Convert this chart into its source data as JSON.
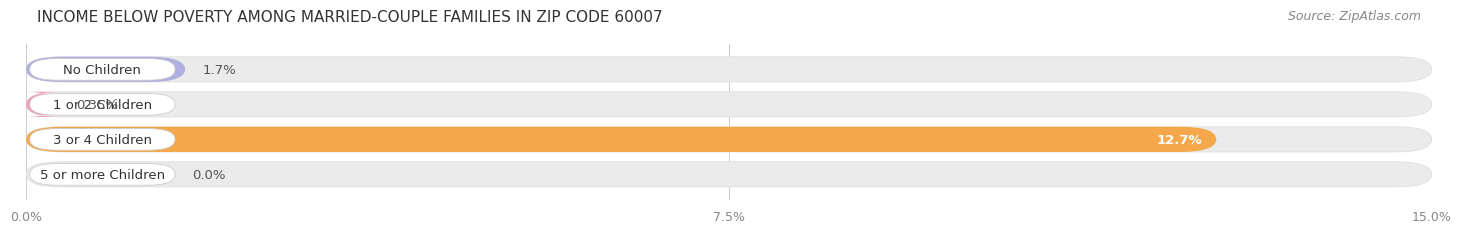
{
  "title": "INCOME BELOW POVERTY AMONG MARRIED-COUPLE FAMILIES IN ZIP CODE 60007",
  "source": "Source: ZipAtlas.com",
  "categories": [
    "No Children",
    "1 or 2 Children",
    "3 or 4 Children",
    "5 or more Children"
  ],
  "values": [
    1.7,
    0.35,
    12.7,
    0.0
  ],
  "bar_colors": [
    "#b0b0e0",
    "#f0a0b8",
    "#f5a84a",
    "#f5b8b8"
  ],
  "bg_bar_color": "#ebebeb",
  "bg_bar_border": "#dddddd",
  "xlim": [
    0,
    15.0
  ],
  "xticks": [
    0.0,
    7.5,
    15.0
  ],
  "xtick_labels": [
    "0.0%",
    "7.5%",
    "15.0%"
  ],
  "value_labels": [
    "1.7%",
    "0.35%",
    "12.7%",
    "0.0%"
  ],
  "value_inside": [
    false,
    false,
    true,
    false
  ],
  "title_fontsize": 11,
  "source_fontsize": 9,
  "label_fontsize": 9.5,
  "value_fontsize": 9.5,
  "background_color": "#ffffff"
}
